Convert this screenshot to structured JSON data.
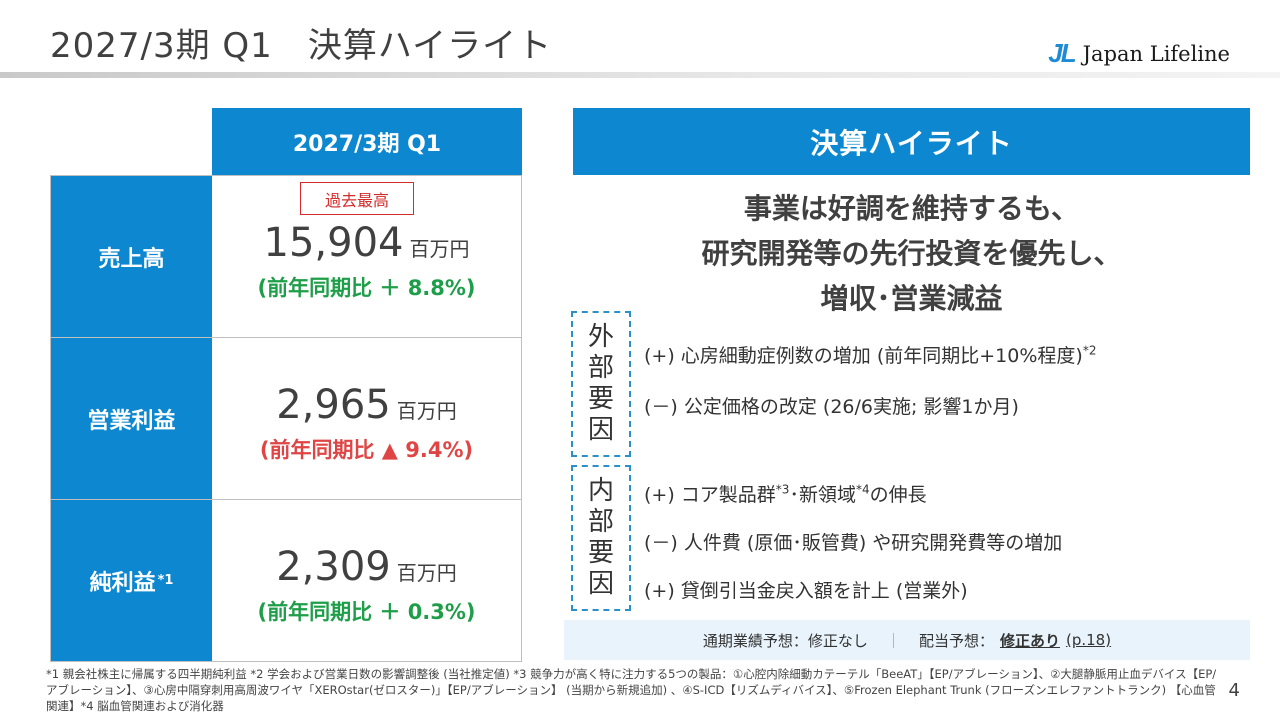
{
  "header": {
    "title": "2027/3期 Q1　決算ハイライト",
    "logo_mark": "JL",
    "logo_text": "Japan Lifeline"
  },
  "table": {
    "column_header": "2027/3期 Q1",
    "rows": [
      {
        "label": "売上高",
        "label_sup": "",
        "badge": "過去最高",
        "value": "15,904",
        "unit": "百万円",
        "yoy": "(前年同期比 ＋ 8.8%)"
      },
      {
        "label": "営業利益",
        "label_sup": "",
        "badge": "",
        "value": "2,965",
        "unit": "百万円",
        "yoy": "(前年同期比 ▲ 9.4%)"
      },
      {
        "label": "純利益",
        "label_sup": "*1",
        "badge": "",
        "value": "2,309",
        "unit": "百万円",
        "yoy": "(前年同期比 ＋ 0.3%)"
      }
    ]
  },
  "highlight": {
    "header": "決算ハイライト",
    "summary": [
      "事業は好調を維持するも、",
      "研究開発等の先行投資を優先し、",
      "増収･営業減益"
    ],
    "external": {
      "label": [
        "外",
        "部",
        "要",
        "因"
      ],
      "items": [
        {
          "text": "(+) 心房細動症例数の増加 (前年同期比+10%程度)",
          "sup": "*2"
        },
        {
          "text": "(－) 公定価格の改定 (26/6実施; 影響1か月)",
          "sup": ""
        }
      ]
    },
    "internal": {
      "label": [
        "内",
        "部",
        "要",
        "因"
      ],
      "items": [
        {
          "a": "(+) コア製品群",
          "sup1": "*3",
          "b": "･新領域",
          "sup2": "*4",
          "c": "の伸長"
        },
        {
          "text": "(－) 人件費 (原価･販管費) や研究開発費等の増加"
        },
        {
          "text": "(+) 貸倒引当金戻入額を計上 (営業外)"
        }
      ]
    },
    "forecast": {
      "annual_label": "通期業績予想：修正なし",
      "separator": "｜",
      "dividend_label": "配当予想：",
      "dividend_value": "修正あり",
      "page_ref": "(p.18)"
    }
  },
  "footnote": "*1 親会社株主に帰属する四半期純利益 *2 学会および営業日数の影響調整後 (当社推定値) *3 競争力が高く特に注力する5つの製品：①心腔内除細動カテーテル「BeeAT」【EP/アブレーション】、②大腿静脈用止血デバイス【EP/アブレーション】、③心房中隔穿刺用高周波ワイヤ「XEROstar(ゼロスター)」【EP/アブレーション】 (当期から新規追加) 、④S-ICD【リズムディバイス】、⑤Frozen Elephant Trunk (フローズンエレファントトランク) 【心血管関連】*4 脳血管関連および消化器",
  "page_number": "4"
}
